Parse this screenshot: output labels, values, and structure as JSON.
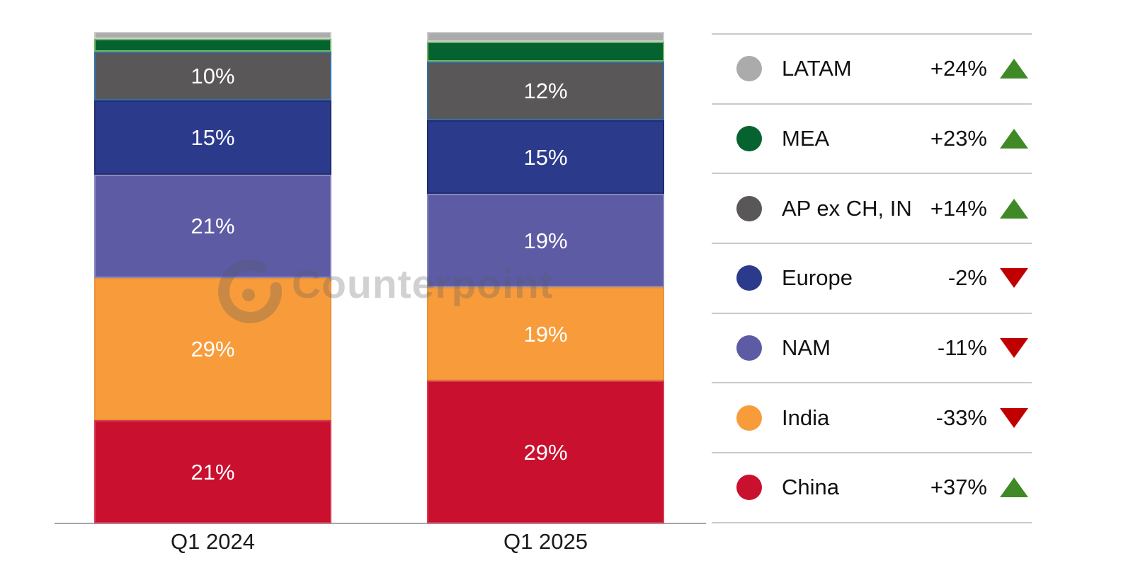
{
  "watermark": {
    "brand": "Counterpoint"
  },
  "chart_data": {
    "type": "bar",
    "variant": "100%-stacked-column",
    "categories": [
      "Q1 2024",
      "Q1 2025"
    ],
    "value_unit": "%",
    "series_note": "series listed bottom-to-top of stack; LATAM and MEA segment sizes estimated from pixels (unlabeled in chart)",
    "series": [
      {
        "name": "China",
        "color": "#c9102e",
        "edge": "rgba(238,120,140,0.40)",
        "values": [
          21,
          29
        ],
        "bar_labels": [
          "21%",
          "29%"
        ],
        "change": "+37%",
        "trend": "up"
      },
      {
        "name": "India",
        "color": "#f89c3b",
        "edge": "rgba(0,0,0,0.06)",
        "values": [
          29,
          19
        ],
        "bar_labels": [
          "29%",
          "19%"
        ],
        "change": "-33%",
        "trend": "down"
      },
      {
        "name": "NAM",
        "color": "#5e5ba5",
        "edge": "rgba(151,149,199,0.75)",
        "values": [
          21,
          19
        ],
        "bar_labels": [
          "21%",
          "19%"
        ],
        "change": "-11%",
        "trend": "down"
      },
      {
        "name": "Europe",
        "color": "#2c3a8c",
        "edge": "rgba(23,32,84,0.50)",
        "values": [
          15,
          15
        ],
        "bar_labels": [
          "15%",
          "15%"
        ],
        "change": "-2%",
        "trend": "down"
      },
      {
        "name": "AP ex CH, IN",
        "color": "#595757",
        "edge": "rgba(46,117,182,0.85)",
        "values": [
          10,
          12
        ],
        "bar_labels": [
          "10%",
          "12%"
        ],
        "change": "+14%",
        "trend": "up"
      },
      {
        "name": "MEA",
        "color": "#05632f",
        "edge": "rgba(118,186,102,0.95)",
        "values": [
          2.5,
          4
        ],
        "bar_labels": [
          "",
          ""
        ],
        "change": "+23%",
        "trend": "up",
        "estimated": true
      },
      {
        "name": "LATAM",
        "color": "#ababab",
        "edge": "rgba(255,255,255,0.40)",
        "values": [
          1.5,
          2
        ],
        "bar_labels": [
          "",
          ""
        ],
        "change": "+24%",
        "trend": "up",
        "estimated": true
      }
    ],
    "legend_position": "right",
    "legend_order": [
      "LATAM",
      "MEA",
      "AP ex CH, IN",
      "Europe",
      "NAM",
      "India",
      "China"
    ],
    "trend_colors": {
      "up": "#3f8a26",
      "down": "#c00000"
    },
    "axis": {
      "baseline_visible": true,
      "gridlines": false,
      "y_axis_visible": false,
      "ylim": [
        0,
        100
      ]
    }
  }
}
